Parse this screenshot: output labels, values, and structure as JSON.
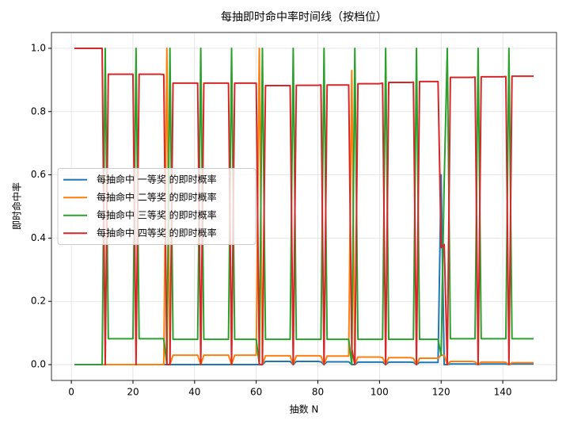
{
  "chart_data": {
    "type": "line",
    "title": "每抽即时命中率时间线（按档位）",
    "xlabel": "抽数 N",
    "ylabel": "即时命中率",
    "x": [
      1,
      2,
      3,
      4,
      5,
      6,
      7,
      8,
      9,
      10,
      11,
      12,
      13,
      14,
      15,
      16,
      17,
      18,
      19,
      20,
      21,
      22,
      23,
      24,
      25,
      26,
      27,
      28,
      29,
      30,
      31,
      32,
      33,
      34,
      35,
      36,
      37,
      38,
      39,
      40,
      41,
      42,
      43,
      44,
      45,
      46,
      47,
      48,
      49,
      50,
      51,
      52,
      53,
      54,
      55,
      56,
      57,
      58,
      59,
      60,
      61,
      62,
      63,
      64,
      65,
      66,
      67,
      68,
      69,
      70,
      71,
      72,
      73,
      74,
      75,
      76,
      77,
      78,
      79,
      80,
      81,
      82,
      83,
      84,
      85,
      86,
      87,
      88,
      89,
      90,
      91,
      92,
      93,
      94,
      95,
      96,
      97,
      98,
      99,
      100,
      101,
      102,
      103,
      104,
      105,
      106,
      107,
      108,
      109,
      110,
      111,
      112,
      113,
      114,
      115,
      116,
      117,
      118,
      119,
      120,
      121,
      122,
      123,
      124,
      125,
      126,
      127,
      128,
      129,
      130,
      131,
      132,
      133,
      134,
      135,
      136,
      137,
      138,
      139,
      140,
      141,
      142,
      143,
      144,
      145,
      146,
      147,
      148,
      149,
      150
    ],
    "series": [
      {
        "name": "每抽命中 一等奖 的即时概率",
        "color": "#1f77b4",
        "values": [
          0,
          0,
          0,
          0,
          0,
          0,
          0,
          0,
          0,
          0,
          0,
          0,
          0,
          0,
          0,
          0,
          0,
          0,
          0,
          0,
          0,
          0,
          0,
          0,
          0,
          0,
          0,
          0,
          0,
          0,
          0,
          0,
          0,
          0,
          0,
          0,
          0,
          0,
          0,
          0,
          0,
          0,
          0,
          0,
          0,
          0,
          0,
          0,
          0,
          0,
          0,
          0,
          0,
          0,
          0,
          0,
          0,
          0,
          0,
          0,
          0,
          0,
          0.01,
          0.01,
          0.01,
          0.01,
          0.01,
          0.01,
          0.01,
          0.01,
          0.01,
          0,
          0.01,
          0.01,
          0.01,
          0.01,
          0.01,
          0.01,
          0.01,
          0.01,
          0.009,
          0,
          0.009,
          0.009,
          0.009,
          0.009,
          0.009,
          0.009,
          0.009,
          0.009,
          0,
          0,
          0.008,
          0.008,
          0.008,
          0.008,
          0.008,
          0.008,
          0.008,
          0.008,
          0.008,
          0,
          0.008,
          0.008,
          0.008,
          0.008,
          0.008,
          0.008,
          0.008,
          0.008,
          0.007,
          0,
          0.007,
          0.007,
          0.007,
          0.007,
          0.007,
          0.007,
          0.007,
          0.6,
          0,
          0,
          0.002,
          0.002,
          0.002,
          0.002,
          0.002,
          0.002,
          0.002,
          0.002,
          0.002,
          0,
          0.002,
          0.002,
          0.002,
          0.002,
          0.002,
          0.002,
          0.002,
          0.002,
          0.002,
          0,
          0.002,
          0.002,
          0.002,
          0.002,
          0.002,
          0.002,
          0.002,
          0.002
        ]
      },
      {
        "name": "每抽命中 二等奖 的即时概率",
        "color": "#ff7f0e",
        "values": [
          0,
          0,
          0,
          0,
          0,
          0,
          0,
          0,
          0,
          0,
          0,
          0,
          0,
          0,
          0,
          0,
          0,
          0,
          0,
          0,
          0,
          0,
          0,
          0,
          0,
          0,
          0,
          0,
          0,
          0,
          1.0,
          0,
          0.03,
          0.03,
          0.03,
          0.03,
          0.03,
          0.03,
          0.03,
          0.03,
          0.03,
          0,
          0.03,
          0.03,
          0.03,
          0.03,
          0.03,
          0.03,
          0.03,
          0.03,
          0.03,
          0,
          0.03,
          0.03,
          0.03,
          0.03,
          0.03,
          0.03,
          0.03,
          0.03,
          1.0,
          0,
          0.028,
          0.028,
          0.028,
          0.028,
          0.028,
          0.028,
          0.028,
          0.028,
          0.028,
          0,
          0.028,
          0.028,
          0.028,
          0.028,
          0.028,
          0.028,
          0.028,
          0.028,
          0.027,
          0,
          0.027,
          0.027,
          0.027,
          0.027,
          0.027,
          0.027,
          0.027,
          0.027,
          0.93,
          0,
          0.024,
          0.024,
          0.024,
          0.024,
          0.024,
          0.024,
          0.024,
          0.024,
          0.022,
          0,
          0.022,
          0.022,
          0.022,
          0.022,
          0.022,
          0.022,
          0.022,
          0.022,
          0.02,
          0,
          0.02,
          0.02,
          0.02,
          0.02,
          0.02,
          0.02,
          0.02,
          0.03,
          0.03,
          0,
          0.01,
          0.01,
          0.01,
          0.01,
          0.01,
          0.01,
          0.01,
          0.01,
          0.009,
          0,
          0.008,
          0.008,
          0.008,
          0.008,
          0.008,
          0.008,
          0.008,
          0.008,
          0.007,
          0,
          0.006,
          0.006,
          0.006,
          0.006,
          0.006,
          0.006,
          0.006,
          0.006
        ]
      },
      {
        "name": "每抽命中 三等奖 的即时概率",
        "color": "#2ca02c",
        "values": [
          0,
          0,
          0,
          0,
          0,
          0,
          0,
          0,
          0,
          0,
          1.0,
          0.082,
          0.082,
          0.082,
          0.082,
          0.082,
          0.082,
          0.082,
          0.082,
          0.082,
          1.0,
          0.082,
          0.082,
          0.082,
          0.082,
          0.082,
          0.082,
          0.082,
          0.082,
          0.082,
          0,
          1.0,
          0.08,
          0.08,
          0.08,
          0.08,
          0.08,
          0.08,
          0.08,
          0.08,
          0.08,
          1.0,
          0.08,
          0.08,
          0.08,
          0.08,
          0.08,
          0.08,
          0.08,
          0.08,
          0.08,
          1.0,
          0.08,
          0.08,
          0.08,
          0.08,
          0.08,
          0.08,
          0.08,
          0.08,
          0,
          1.0,
          0.08,
          0.08,
          0.08,
          0.08,
          0.08,
          0.08,
          0.08,
          0.08,
          0.08,
          1.0,
          0.08,
          0.08,
          0.08,
          0.08,
          0.08,
          0.08,
          0.08,
          0.08,
          0.08,
          1.0,
          0.08,
          0.08,
          0.08,
          0.08,
          0.08,
          0.08,
          0.08,
          0.08,
          0,
          1.0,
          0.08,
          0.08,
          0.08,
          0.08,
          0.08,
          0.08,
          0.08,
          0.08,
          0.08,
          1.0,
          0.08,
          0.08,
          0.08,
          0.08,
          0.08,
          0.08,
          0.08,
          0.08,
          0.08,
          1.0,
          0.08,
          0.08,
          0.08,
          0.08,
          0.08,
          0.08,
          0.08,
          0.03,
          0.58,
          1.0,
          0.082,
          0.082,
          0.082,
          0.082,
          0.082,
          0.082,
          0.082,
          0.082,
          0.082,
          1.0,
          0.082,
          0.082,
          0.082,
          0.082,
          0.082,
          0.082,
          0.082,
          0.082,
          0.082,
          1.0,
          0.082,
          0.082,
          0.082,
          0.082,
          0.082,
          0.082,
          0.082,
          0.082
        ]
      },
      {
        "name": "每抽命中 四等奖 的即时概率",
        "color": "#d62728",
        "values": [
          1.0,
          1.0,
          1.0,
          1.0,
          1.0,
          1.0,
          1.0,
          1.0,
          1.0,
          1.0,
          0,
          0.918,
          0.918,
          0.918,
          0.918,
          0.918,
          0.918,
          0.918,
          0.918,
          0.918,
          0,
          0.918,
          0.918,
          0.918,
          0.918,
          0.918,
          0.918,
          0.918,
          0.918,
          0.917,
          0,
          0,
          0.89,
          0.89,
          0.89,
          0.89,
          0.89,
          0.89,
          0.89,
          0.89,
          0.89,
          0,
          0.89,
          0.89,
          0.89,
          0.89,
          0.89,
          0.89,
          0.89,
          0.89,
          0.89,
          0,
          0.89,
          0.89,
          0.89,
          0.89,
          0.89,
          0.89,
          0.89,
          0.89,
          0,
          0,
          0.882,
          0.882,
          0.882,
          0.882,
          0.882,
          0.882,
          0.882,
          0.882,
          0.882,
          0,
          0.883,
          0.883,
          0.883,
          0.883,
          0.883,
          0.883,
          0.883,
          0.883,
          0.884,
          0,
          0.884,
          0.884,
          0.884,
          0.884,
          0.884,
          0.884,
          0.884,
          0.884,
          0.05,
          0,
          0.888,
          0.888,
          0.888,
          0.888,
          0.888,
          0.888,
          0.888,
          0.888,
          0.89,
          0,
          0.892,
          0.892,
          0.892,
          0.892,
          0.892,
          0.892,
          0.892,
          0.892,
          0.893,
          0,
          0.895,
          0.895,
          0.895,
          0.895,
          0.895,
          0.895,
          0.895,
          0.37,
          0.38,
          0,
          0.908,
          0.908,
          0.908,
          0.908,
          0.908,
          0.908,
          0.908,
          0.908,
          0.909,
          0,
          0.91,
          0.91,
          0.91,
          0.91,
          0.91,
          0.91,
          0.91,
          0.91,
          0.911,
          0,
          0.912,
          0.912,
          0.912,
          0.912,
          0.912,
          0.912,
          0.912,
          0.912
        ]
      }
    ],
    "xlim": [
      -6.45,
      157.45
    ],
    "ylim": [
      -0.05,
      1.05
    ],
    "xticks": [
      0,
      20,
      40,
      60,
      80,
      100,
      120,
      140
    ],
    "yticks": [
      {
        "value": 0,
        "label": "0.0"
      },
      0.2,
      0.4,
      0.6,
      0.8,
      {
        "value": 1,
        "label": "1.0"
      }
    ],
    "grid": true,
    "legend": "center left"
  }
}
